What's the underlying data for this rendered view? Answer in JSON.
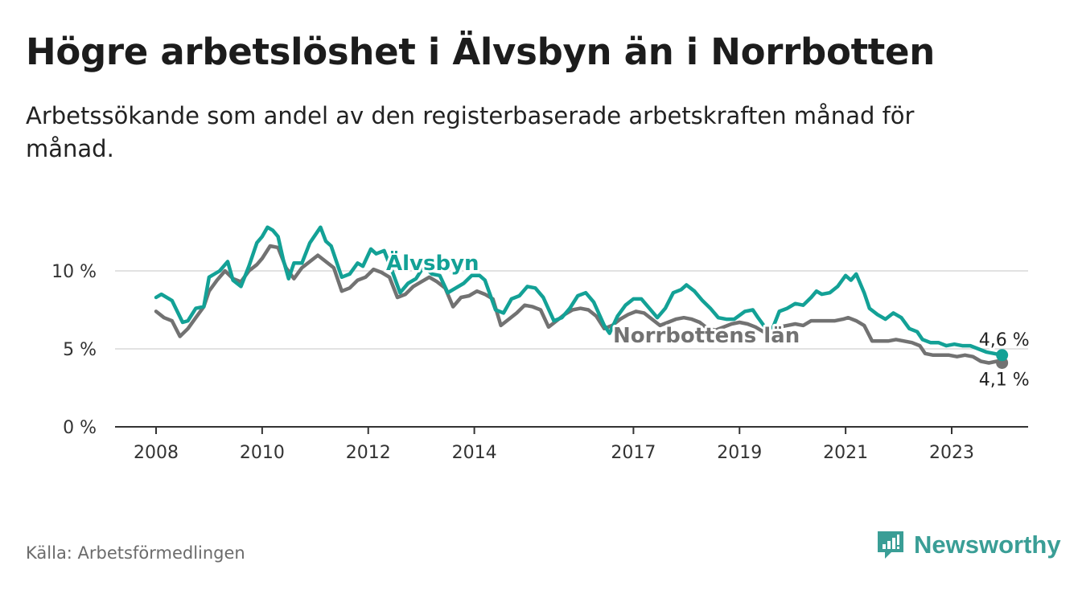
{
  "header": {
    "title": "Högre arbetslöshet i Älvsbyn än i Norrbotten",
    "subtitle": "Arbetssökande som andel av den registerbaserade arbetskraften månad för månad."
  },
  "footer": {
    "source": "Källa: Arbetsförmedlingen",
    "brand": "Newsworthy"
  },
  "colors": {
    "alvsbyn": "#13a196",
    "norrbotten": "#727272",
    "grid": "#d9d9d9",
    "axis": "#333333",
    "brand": "#3a9e96"
  },
  "chart_data": {
    "type": "line",
    "title": "Högre arbetslöshet i Älvsbyn än i Norrbotten",
    "xlabel": "",
    "ylabel": "",
    "xlim": [
      2007.8,
      2024.4
    ],
    "ylim": [
      0,
      10
    ],
    "x_ticks": [
      2008,
      2010,
      2012,
      2014,
      2017,
      2019,
      2021,
      2023
    ],
    "x_tick_labels": [
      "2008",
      "2010",
      "2012",
      "2014",
      "2017",
      "2019",
      "2021",
      "2023"
    ],
    "y_ticks": [
      0,
      5,
      10
    ],
    "y_tick_labels": [
      "0 %",
      "5 %",
      "10 %"
    ],
    "grid": true,
    "series": [
      {
        "name": "Älvsbyn",
        "label": "Älvsbyn",
        "end_label": "4,6 %",
        "color": "#13a196",
        "points": [
          [
            2008.0,
            8.3
          ],
          [
            2008.1,
            8.5
          ],
          [
            2008.3,
            8.1
          ],
          [
            2008.5,
            6.7
          ],
          [
            2008.6,
            6.8
          ],
          [
            2008.75,
            7.6
          ],
          [
            2008.9,
            7.7
          ],
          [
            2009.0,
            9.6
          ],
          [
            2009.2,
            10.0
          ],
          [
            2009.35,
            10.6
          ],
          [
            2009.45,
            9.4
          ],
          [
            2009.6,
            9.0
          ],
          [
            2009.75,
            10.3
          ],
          [
            2009.9,
            11.8
          ],
          [
            2010.0,
            12.2
          ],
          [
            2010.1,
            12.8
          ],
          [
            2010.2,
            12.6
          ],
          [
            2010.3,
            12.2
          ],
          [
            2010.4,
            10.7
          ],
          [
            2010.5,
            9.5
          ],
          [
            2010.6,
            10.5
          ],
          [
            2010.75,
            10.5
          ],
          [
            2010.9,
            11.8
          ],
          [
            2011.1,
            12.8
          ],
          [
            2011.2,
            11.9
          ],
          [
            2011.3,
            11.6
          ],
          [
            2011.5,
            9.6
          ],
          [
            2011.65,
            9.8
          ],
          [
            2011.8,
            10.5
          ],
          [
            2011.9,
            10.3
          ],
          [
            2012.05,
            11.4
          ],
          [
            2012.15,
            11.1
          ],
          [
            2012.3,
            11.3
          ],
          [
            2012.45,
            10.0
          ],
          [
            2012.6,
            8.6
          ],
          [
            2012.75,
            9.2
          ],
          [
            2012.9,
            9.5
          ],
          [
            2013.05,
            10.3
          ],
          [
            2013.2,
            9.8
          ],
          [
            2013.35,
            9.7
          ],
          [
            2013.5,
            8.6
          ],
          [
            2013.65,
            8.9
          ],
          [
            2013.8,
            9.2
          ],
          [
            2013.95,
            9.7
          ],
          [
            2014.1,
            9.7
          ],
          [
            2014.2,
            9.4
          ],
          [
            2014.4,
            7.5
          ],
          [
            2014.55,
            7.3
          ],
          [
            2014.7,
            8.2
          ],
          [
            2014.85,
            8.4
          ],
          [
            2015.0,
            9.0
          ],
          [
            2015.15,
            8.9
          ],
          [
            2015.3,
            8.3
          ],
          [
            2015.5,
            6.8
          ],
          [
            2015.65,
            7.0
          ],
          [
            2015.8,
            7.6
          ],
          [
            2015.95,
            8.4
          ],
          [
            2016.1,
            8.6
          ],
          [
            2016.25,
            8.0
          ],
          [
            2016.45,
            6.5
          ],
          [
            2016.55,
            6.0
          ],
          [
            2016.7,
            7.1
          ],
          [
            2016.85,
            7.8
          ],
          [
            2017.0,
            8.2
          ],
          [
            2017.15,
            8.2
          ],
          [
            2017.3,
            7.6
          ],
          [
            2017.45,
            7.0
          ],
          [
            2017.6,
            7.6
          ],
          [
            2017.75,
            8.6
          ],
          [
            2017.9,
            8.8
          ],
          [
            2018.0,
            9.1
          ],
          [
            2018.15,
            8.7
          ],
          [
            2018.3,
            8.1
          ],
          [
            2018.45,
            7.6
          ],
          [
            2018.6,
            7.0
          ],
          [
            2018.75,
            6.9
          ],
          [
            2018.9,
            6.9
          ],
          [
            2019.1,
            7.4
          ],
          [
            2019.25,
            7.5
          ],
          [
            2019.35,
            7.0
          ],
          [
            2019.5,
            6.3
          ],
          [
            2019.6,
            6.1
          ],
          [
            2019.75,
            7.4
          ],
          [
            2019.9,
            7.6
          ],
          [
            2020.05,
            7.9
          ],
          [
            2020.2,
            7.8
          ],
          [
            2020.35,
            8.3
          ],
          [
            2020.45,
            8.7
          ],
          [
            2020.55,
            8.5
          ],
          [
            2020.7,
            8.6
          ],
          [
            2020.85,
            9.0
          ],
          [
            2021.0,
            9.7
          ],
          [
            2021.1,
            9.4
          ],
          [
            2021.2,
            9.8
          ],
          [
            2021.35,
            8.6
          ],
          [
            2021.45,
            7.6
          ],
          [
            2021.6,
            7.2
          ],
          [
            2021.75,
            6.9
          ],
          [
            2021.9,
            7.3
          ],
          [
            2022.05,
            7.0
          ],
          [
            2022.2,
            6.3
          ],
          [
            2022.35,
            6.1
          ],
          [
            2022.45,
            5.6
          ],
          [
            2022.6,
            5.4
          ],
          [
            2022.75,
            5.4
          ],
          [
            2022.9,
            5.2
          ],
          [
            2023.05,
            5.3
          ],
          [
            2023.2,
            5.2
          ],
          [
            2023.35,
            5.2
          ],
          [
            2023.5,
            5.0
          ],
          [
            2023.65,
            4.8
          ],
          [
            2023.8,
            4.7
          ],
          [
            2023.95,
            4.6
          ]
        ]
      },
      {
        "name": "Norrbottens län",
        "label": "Norrbottens län",
        "end_label": "4,1 %",
        "color": "#727272",
        "points": [
          [
            2008.0,
            7.4
          ],
          [
            2008.15,
            7.0
          ],
          [
            2008.3,
            6.8
          ],
          [
            2008.45,
            5.8
          ],
          [
            2008.6,
            6.3
          ],
          [
            2008.75,
            7.0
          ],
          [
            2008.9,
            7.7
          ],
          [
            2009.0,
            8.7
          ],
          [
            2009.15,
            9.4
          ],
          [
            2009.3,
            10.0
          ],
          [
            2009.45,
            9.5
          ],
          [
            2009.6,
            9.3
          ],
          [
            2009.75,
            10.0
          ],
          [
            2009.9,
            10.4
          ],
          [
            2010.0,
            10.8
          ],
          [
            2010.15,
            11.6
          ],
          [
            2010.3,
            11.5
          ],
          [
            2010.45,
            10.2
          ],
          [
            2010.6,
            9.5
          ],
          [
            2010.75,
            10.2
          ],
          [
            2010.9,
            10.6
          ],
          [
            2011.05,
            11.0
          ],
          [
            2011.2,
            10.6
          ],
          [
            2011.35,
            10.2
          ],
          [
            2011.5,
            8.7
          ],
          [
            2011.65,
            8.9
          ],
          [
            2011.8,
            9.4
          ],
          [
            2011.95,
            9.6
          ],
          [
            2012.1,
            10.1
          ],
          [
            2012.25,
            9.9
          ],
          [
            2012.4,
            9.6
          ],
          [
            2012.55,
            8.3
          ],
          [
            2012.7,
            8.5
          ],
          [
            2012.85,
            9.0
          ],
          [
            2013.0,
            9.3
          ],
          [
            2013.15,
            9.6
          ],
          [
            2013.3,
            9.3
          ],
          [
            2013.45,
            8.9
          ],
          [
            2013.6,
            7.7
          ],
          [
            2013.75,
            8.3
          ],
          [
            2013.9,
            8.4
          ],
          [
            2014.05,
            8.7
          ],
          [
            2014.2,
            8.5
          ],
          [
            2014.35,
            8.2
          ],
          [
            2014.5,
            6.5
          ],
          [
            2014.65,
            6.9
          ],
          [
            2014.8,
            7.3
          ],
          [
            2014.95,
            7.8
          ],
          [
            2015.1,
            7.7
          ],
          [
            2015.25,
            7.5
          ],
          [
            2015.4,
            6.4
          ],
          [
            2015.55,
            6.8
          ],
          [
            2015.7,
            7.2
          ],
          [
            2015.85,
            7.5
          ],
          [
            2016.0,
            7.6
          ],
          [
            2016.15,
            7.5
          ],
          [
            2016.3,
            7.1
          ],
          [
            2016.45,
            6.3
          ],
          [
            2016.6,
            6.5
          ],
          [
            2016.75,
            6.9
          ],
          [
            2016.9,
            7.2
          ],
          [
            2017.05,
            7.4
          ],
          [
            2017.2,
            7.3
          ],
          [
            2017.35,
            6.9
          ],
          [
            2017.5,
            6.5
          ],
          [
            2017.65,
            6.7
          ],
          [
            2017.8,
            6.9
          ],
          [
            2017.95,
            7.0
          ],
          [
            2018.1,
            6.9
          ],
          [
            2018.25,
            6.7
          ],
          [
            2018.4,
            6.3
          ],
          [
            2018.55,
            6.2
          ],
          [
            2018.7,
            6.4
          ],
          [
            2018.85,
            6.6
          ],
          [
            2019.0,
            6.7
          ],
          [
            2019.15,
            6.6
          ],
          [
            2019.3,
            6.4
          ],
          [
            2019.45,
            6.1
          ],
          [
            2019.6,
            6.2
          ],
          [
            2019.75,
            6.4
          ],
          [
            2019.9,
            6.5
          ],
          [
            2020.05,
            6.6
          ],
          [
            2020.2,
            6.5
          ],
          [
            2020.35,
            6.8
          ],
          [
            2020.5,
            6.8
          ],
          [
            2020.65,
            6.8
          ],
          [
            2020.8,
            6.8
          ],
          [
            2020.95,
            6.9
          ],
          [
            2021.05,
            7.0
          ],
          [
            2021.2,
            6.8
          ],
          [
            2021.35,
            6.5
          ],
          [
            2021.5,
            5.5
          ],
          [
            2021.65,
            5.5
          ],
          [
            2021.8,
            5.5
          ],
          [
            2021.95,
            5.6
          ],
          [
            2022.1,
            5.5
          ],
          [
            2022.25,
            5.4
          ],
          [
            2022.4,
            5.2
          ],
          [
            2022.5,
            4.7
          ],
          [
            2022.65,
            4.6
          ],
          [
            2022.8,
            4.6
          ],
          [
            2022.95,
            4.6
          ],
          [
            2023.1,
            4.5
          ],
          [
            2023.25,
            4.6
          ],
          [
            2023.4,
            4.5
          ],
          [
            2023.55,
            4.2
          ],
          [
            2023.7,
            4.1
          ],
          [
            2023.85,
            4.2
          ],
          [
            2023.95,
            4.1
          ]
        ]
      }
    ]
  }
}
